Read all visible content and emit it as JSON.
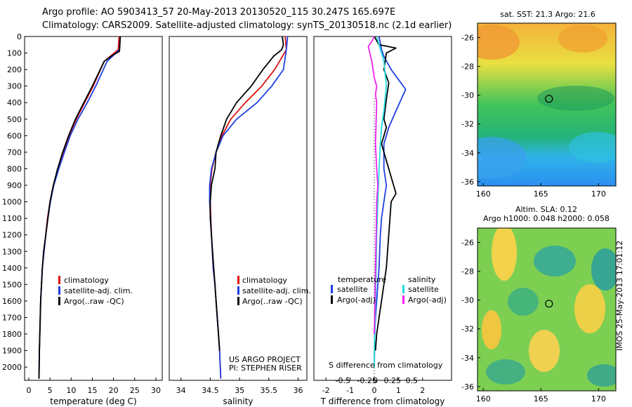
{
  "header": {
    "line1": "Argo profile: AO 5903413_57 20-May-2013 20130520_115 30.247S 165.697E",
    "line2": "Climatology: CARS2009. Satellite-adjusted climatology: synTS_20130518.nc (2.1d earlier)"
  },
  "colors": {
    "climatology": "#dd1111",
    "satellite": "#1f3fe0",
    "argo": "#000000",
    "satellite_salinity": "#22dddd",
    "argo_salinity": "#ee22ee"
  },
  "footer": {
    "project": "US ARGO PROJECT",
    "pi": "PI: STEPHEN RISER",
    "stamp": "IMOS 25-May-2013 17:01:12"
  },
  "maps": {
    "sst_title": "sat. SST: 21.3  Argo: 21.6",
    "sla_title1": "Altim. SLA: 0.12",
    "sla_title2": "Argo h1000: 0.048 h2000: 0.058",
    "lat_ticks": [
      "-26",
      "-28",
      "-30",
      "-32",
      "-34",
      "-36"
    ],
    "lon_ticks": [
      "160",
      "165",
      "170"
    ],
    "float_position": {
      "lon": 165.7,
      "lat": -30.25
    }
  },
  "chart_data": [
    {
      "type": "line",
      "xlabel": "temperature (deg C)",
      "ylabel": "",
      "xlim": [
        -1,
        31.5
      ],
      "ylim": [
        2080,
        0
      ],
      "xticks": [
        "0",
        "5",
        "10",
        "15",
        "20",
        "25",
        "30"
      ],
      "yticks": [
        "0",
        "100",
        "200",
        "300",
        "400",
        "500",
        "600",
        "700",
        "800",
        "900",
        "1000",
        "1100",
        "1200",
        "1300",
        "1400",
        "1500",
        "1600",
        "1700",
        "1800",
        "1900",
        "2000"
      ],
      "legend": [
        "climatology",
        "satellite-adj. clim.",
        "Argo(..raw -QC)"
      ],
      "series": [
        {
          "name": "climatology",
          "color": "climatology",
          "x": [
            21.3,
            21.1,
            17.8,
            15.2,
            13.2,
            11.2,
            9.5,
            8.2,
            7.0,
            5.8,
            5.0,
            4.4,
            4.0,
            3.6,
            3.2,
            3.0,
            2.8,
            2.7,
            2.6,
            2.5,
            2.4
          ],
          "y": [
            0,
            80,
            150,
            300,
            400,
            500,
            600,
            700,
            800,
            900,
            1000,
            1100,
            1200,
            1300,
            1400,
            1500,
            1600,
            1700,
            1800,
            1900,
            2070
          ]
        },
        {
          "name": "satellite-adj. clim.",
          "color": "satellite",
          "x": [
            21.6,
            21.4,
            18.5,
            15.8,
            13.8,
            11.6,
            9.8,
            8.4,
            7.1,
            5.9,
            5.1,
            4.5,
            4.0,
            3.6,
            3.2,
            3.0,
            2.8,
            2.7,
            2.6,
            2.5,
            2.4
          ],
          "y": [
            0,
            80,
            150,
            300,
            400,
            500,
            600,
            700,
            800,
            900,
            1000,
            1100,
            1200,
            1300,
            1400,
            1500,
            1600,
            1700,
            1800,
            1900,
            2070
          ]
        },
        {
          "name": "Argo(..raw -QC)",
          "color": "argo",
          "x": [
            21.6,
            21.4,
            20.0,
            17.8,
            15.0,
            13.0,
            11.0,
            9.4,
            8.0,
            6.8,
            5.8,
            5.0,
            4.5,
            4.0,
            3.5,
            3.2,
            3.0,
            2.8,
            2.7,
            2.6,
            2.5,
            2.4
          ],
          "y": [
            0,
            90,
            110,
            150,
            300,
            400,
            500,
            600,
            700,
            800,
            900,
            1000,
            1100,
            1200,
            1300,
            1400,
            1500,
            1600,
            1700,
            1800,
            1900,
            2070
          ]
        }
      ]
    },
    {
      "type": "line",
      "xlabel": "salinity",
      "ylabel": "",
      "xlim": [
        33.8,
        36.15
      ],
      "ylim": [
        2080,
        0
      ],
      "xticks": [
        "34",
        "34.5",
        "35",
        "35.5",
        "36"
      ],
      "legend": [
        "climatology",
        "satellite-adj. clim.",
        "Argo(..raw -QC)"
      ],
      "series": [
        {
          "name": "climatology",
          "color": "climatology",
          "x": [
            35.78,
            35.8,
            35.6,
            35.38,
            35.1,
            34.85,
            34.7,
            34.6,
            34.53,
            34.5,
            34.5,
            34.52,
            34.55,
            34.58,
            34.6,
            34.62,
            34.64,
            34.66,
            34.68
          ],
          "y": [
            0,
            80,
            200,
            300,
            400,
            500,
            600,
            700,
            800,
            900,
            1000,
            1200,
            1400,
            1500,
            1600,
            1700,
            1800,
            1900,
            2070
          ]
        },
        {
          "name": "satellite-adj. clim.",
          "color": "satellite",
          "x": [
            35.82,
            35.8,
            35.75,
            35.55,
            35.3,
            34.95,
            34.72,
            34.6,
            34.52,
            34.49,
            34.49,
            34.52,
            34.55,
            34.58,
            34.6,
            34.62,
            34.64,
            34.66,
            34.68
          ],
          "y": [
            0,
            80,
            200,
            300,
            400,
            500,
            600,
            700,
            800,
            900,
            1000,
            1200,
            1400,
            1500,
            1600,
            1700,
            1800,
            1900,
            2070
          ]
        },
        {
          "name": "Argo(..raw -QC)",
          "color": "argo",
          "x": [
            35.73,
            35.75,
            35.72,
            35.58,
            35.4,
            35.2,
            34.95,
            34.78,
            34.68,
            34.6,
            34.58,
            34.52,
            34.5,
            34.5,
            34.52,
            34.54,
            34.56,
            34.58,
            34.6,
            34.62,
            34.64,
            34.66
          ],
          "y": [
            0,
            50,
            80,
            120,
            200,
            300,
            400,
            500,
            600,
            700,
            800,
            900,
            1000,
            1100,
            1200,
            1300,
            1400,
            1500,
            1600,
            1700,
            1800,
            1900
          ]
        }
      ],
      "annotations": [
        "US ARGO PROJECT",
        "PI: STEPHEN RISER"
      ]
    },
    {
      "type": "line",
      "xlabel": "T difference from climatology",
      "xlabel2": "S difference from climatology",
      "xlim": [
        -2.5,
        3.2
      ],
      "ylim": [
        2080,
        0
      ],
      "xticks": [
        "-2",
        "-1",
        "0",
        "1",
        "2"
      ],
      "xticks2": [
        "-0.5",
        "-0.25",
        "0",
        "0.25",
        "0.5"
      ],
      "legend_left_title": "temperature",
      "legend_right_title": "salinity",
      "legend": [
        "satellite",
        "Argo(-adj)",
        "satellite",
        "Argo(-adj)"
      ],
      "series": [
        {
          "name": "satellite",
          "color": "satellite",
          "x": [
            0.2,
            0.3,
            0.4,
            0.7,
            1.0,
            1.3,
            0.9,
            0.6,
            0.4,
            0.4,
            0.5,
            0.4,
            0.3,
            0.25,
            0.2,
            0.15,
            0.1,
            0.05,
            0.02,
            0.0
          ],
          "y": [
            0,
            80,
            120,
            200,
            260,
            320,
            450,
            550,
            650,
            800,
            900,
            1000,
            1100,
            1200,
            1400,
            1500,
            1600,
            1700,
            1800,
            2000
          ]
        },
        {
          "name": "Argo(-adj)",
          "color": "argo",
          "x": [
            0.0,
            0.2,
            0.9,
            0.5,
            0.4,
            0.6,
            0.5,
            0.4,
            0.5,
            0.3,
            0.4,
            0.6,
            0.8,
            0.9,
            0.7,
            0.6,
            0.5,
            0.4,
            0.3,
            0.2,
            0.1,
            0.05
          ],
          "y": [
            0,
            50,
            70,
            100,
            200,
            280,
            380,
            500,
            550,
            650,
            700,
            800,
            900,
            950,
            1000,
            1200,
            1400,
            1500,
            1600,
            1700,
            1800,
            1900
          ]
        },
        {
          "name": "satellite",
          "color": "satellite_salinity",
          "x": [
            0.1,
            0.2,
            0.4,
            0.5,
            0.4,
            0.3,
            0.25,
            0.2,
            0.15,
            0.1,
            0.08,
            0.05,
            0.02,
            0.0,
            0.0
          ],
          "y": [
            0,
            50,
            150,
            300,
            450,
            550,
            650,
            800,
            1000,
            1200,
            1400,
            1600,
            1800,
            1900,
            2000
          ]
        },
        {
          "name": "Argo(-adj)",
          "color": "argo_salinity",
          "x": [
            0.0,
            -0.1,
            -0.25,
            -0.1,
            0.0,
            0.1,
            0.05,
            0.1,
            0.08,
            0.05,
            0.1,
            0.15,
            0.1,
            0.08,
            0.05,
            0.03,
            0.0
          ],
          "y": [
            0,
            30,
            60,
            150,
            250,
            300,
            350,
            400,
            500,
            650,
            800,
            900,
            1000,
            1200,
            1400,
            1600,
            1800
          ]
        }
      ]
    }
  ]
}
